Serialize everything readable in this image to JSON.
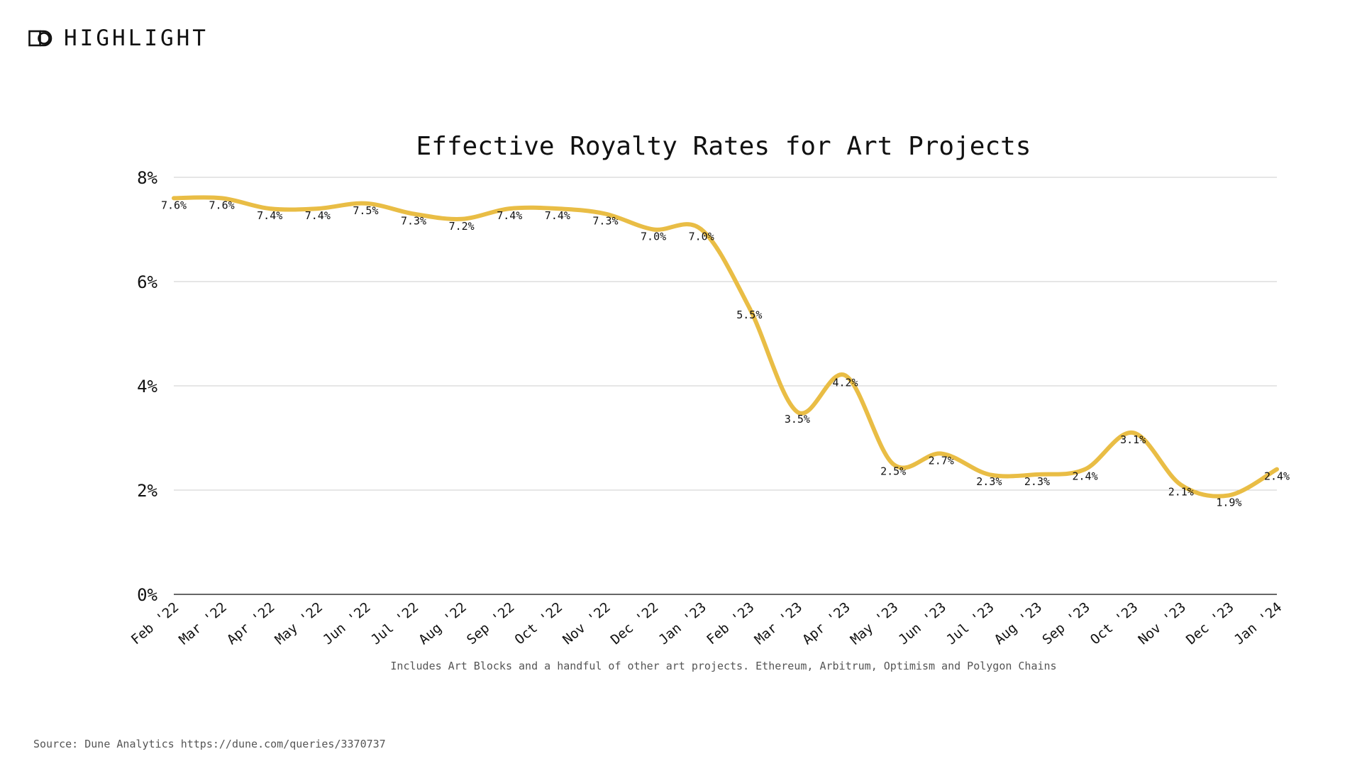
{
  "brand": {
    "name": "HIGHLIGHT",
    "icon": "highlight-logo-icon"
  },
  "source_note": "Source: Dune Analytics https://dune.com/queries/3370737",
  "colors": {
    "line": "#e9bd45",
    "grid": "#cccccc",
    "axis": "#333333",
    "text": "#111111",
    "muted": "#555555"
  },
  "chart_data": {
    "type": "line",
    "title": "Effective Royalty Rates for Art Projects",
    "subtitle": "Includes Art Blocks and a handful of other art projects.  Ethereum, Arbitrum, Optimism and Polygon Chains",
    "xlabel": "",
    "ylabel": "",
    "ylim": [
      0,
      8
    ],
    "yticks": [
      0,
      2,
      4,
      6,
      8
    ],
    "ytick_labels": [
      "0%",
      "2%",
      "4%",
      "6%",
      "8%"
    ],
    "grid": true,
    "categories": [
      "Feb '22",
      "Mar '22",
      "Apr '22",
      "May '22",
      "Jun '22",
      "Jul '22",
      "Aug '22",
      "Sep '22",
      "Oct '22",
      "Nov '22",
      "Dec '22",
      "Jan '23",
      "Feb '23",
      "Mar '23",
      "Apr '23",
      "May '23",
      "Jun '23",
      "Jul '23",
      "Aug '23",
      "Sep '23",
      "Oct '23",
      "Nov '23",
      "Dec '23",
      "Jan '24"
    ],
    "series": [
      {
        "values": [
          7.6,
          7.6,
          7.4,
          7.4,
          7.5,
          7.3,
          7.2,
          7.4,
          7.4,
          7.3,
          7.0,
          7.0,
          5.5,
          3.5,
          4.2,
          2.5,
          2.7,
          2.3,
          2.3,
          2.4,
          3.1,
          2.1,
          1.9,
          2.4
        ],
        "labels": [
          "7.6%",
          "7.6%",
          "7.4%",
          "7.4%",
          "7.5%",
          "7.3%",
          "7.2%",
          "7.4%",
          "7.4%",
          "7.3%",
          "7.0%",
          "7.0%",
          "5.5%",
          "3.5%",
          "4.2%",
          "2.5%",
          "2.7%",
          "2.3%",
          "2.3%",
          "2.4%",
          "3.1%",
          "2.1%",
          "1.9%",
          "2.4%"
        ]
      }
    ]
  }
}
